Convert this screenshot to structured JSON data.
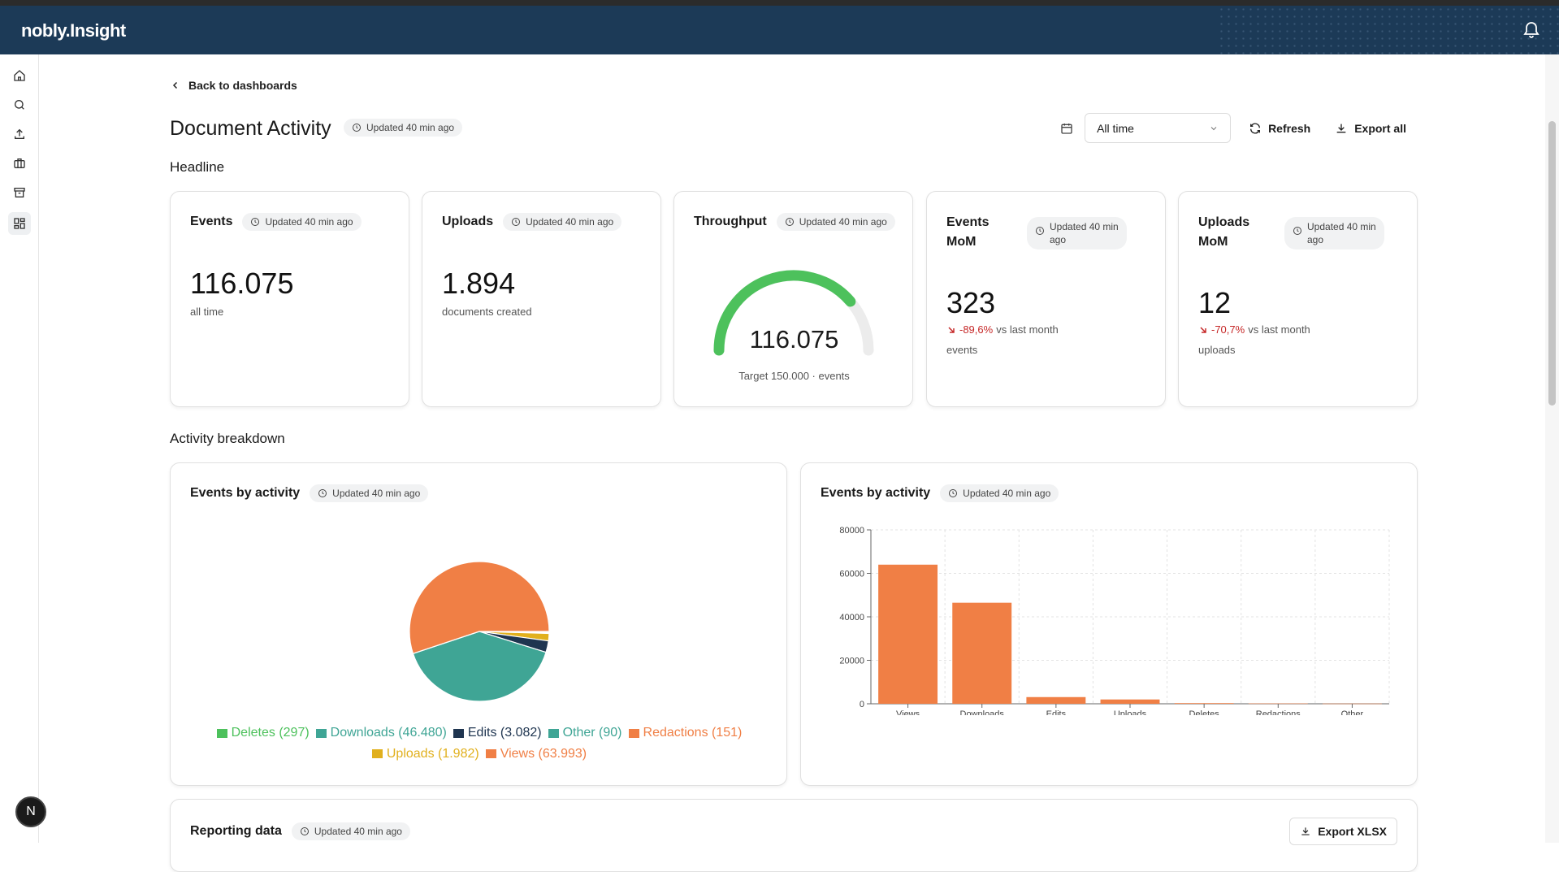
{
  "app": {
    "logo_text": "nobly.Insight"
  },
  "nav": {
    "back_label": "Back to dashboards"
  },
  "page": {
    "title": "Document Activity",
    "updated": "Updated 40 min ago"
  },
  "toolbar": {
    "range_value": "All time",
    "refresh_label": "Refresh",
    "export_label": "Export all"
  },
  "sections": {
    "headline": "Headline",
    "breakdown": "Activity breakdown"
  },
  "kpis": [
    {
      "title": "Events",
      "updated": "Updated 40 min ago",
      "value": "116.075",
      "sub": "all time"
    },
    {
      "title": "Uploads",
      "updated": "Updated 40 min ago",
      "value": "1.894",
      "sub": "documents created"
    },
    {
      "title": "Throughput",
      "updated": "Updated 40 min ago",
      "value": "116.075",
      "target_text": "Target 150.000 · events",
      "progress": 0.774
    },
    {
      "title_line1": "Events",
      "title_line2": "MoM",
      "updated_line1": "Updated 40 min",
      "updated_line2": "ago",
      "value": "323",
      "delta": "-89,6%",
      "delta_suffix": "vs last month",
      "sub": "events"
    },
    {
      "title_line1": "Uploads",
      "title_line2": "MoM",
      "updated_line1": "Updated 40 min",
      "updated_line2": "ago",
      "value": "12",
      "delta": "-70,7%",
      "delta_suffix": "vs last month",
      "sub": "uploads"
    }
  ],
  "pie_card": {
    "title": "Events by activity",
    "updated": "Updated 40 min ago",
    "legend_row1": [
      "Deletes (297)",
      "Downloads (46.480)",
      "Edits (3.082)",
      "Other (90)",
      "Redactions (151)"
    ],
    "legend_row2": [
      "Uploads (1.982)",
      "Views (63.993)"
    ]
  },
  "bar_card": {
    "title": "Events by activity",
    "updated": "Updated 40 min ago"
  },
  "reporting": {
    "title": "Reporting data",
    "updated": "Updated 40 min ago",
    "export_label": "Export XLSX"
  },
  "avatar": {
    "initial": "N"
  },
  "colors": {
    "header": "#1c3a57",
    "orange": "#f07f45",
    "teal": "#3fa595",
    "green": "#4dc15c",
    "navy": "#1f3550",
    "gold": "#e1b01d",
    "negative": "#c62828"
  },
  "chart_data": [
    {
      "type": "pie",
      "title": "Events by activity",
      "series": [
        {
          "name": "Deletes",
          "value": 297,
          "color": "#4dc15c"
        },
        {
          "name": "Downloads",
          "value": 46480,
          "color": "#3fa595"
        },
        {
          "name": "Edits",
          "value": 3082,
          "color": "#1f3550"
        },
        {
          "name": "Other",
          "value": 90,
          "color": "#3fa595"
        },
        {
          "name": "Redactions",
          "value": 151,
          "color": "#f07f45"
        },
        {
          "name": "Uploads",
          "value": 1982,
          "color": "#e1b01d"
        },
        {
          "name": "Views",
          "value": 63993,
          "color": "#f07f45"
        }
      ]
    },
    {
      "type": "bar",
      "title": "Events by activity",
      "categories": [
        "Views",
        "Downloads",
        "Edits",
        "Uploads",
        "Deletes",
        "Redactions",
        "Other"
      ],
      "values": [
        63993,
        46480,
        3082,
        1982,
        297,
        151,
        90
      ],
      "yticks": [
        "0",
        "20000",
        "40000",
        "60000",
        "80000"
      ],
      "ylim": [
        0,
        80000
      ],
      "grid": true,
      "color": "#f07f45"
    }
  ]
}
